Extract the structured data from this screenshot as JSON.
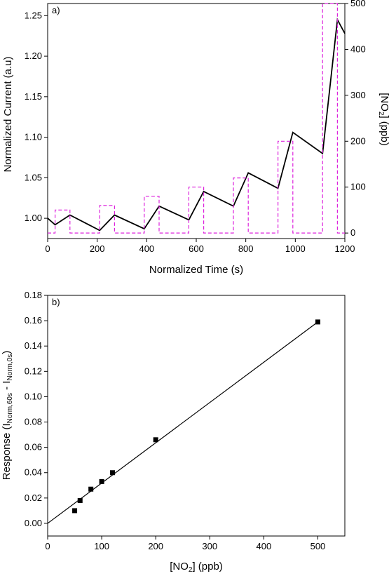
{
  "chart_data": [
    {
      "panel_label": "a)",
      "type": "line",
      "xlabel": "Normalized Time (s)",
      "ylabel": "Normalized Current (a.u)",
      "y2label_main": "[NO",
      "y2label_sub": "2",
      "y2label_tail": "] (ppb)",
      "xlim": [
        0,
        1200
      ],
      "ylim": [
        0.975,
        1.265
      ],
      "y2lim": [
        -12,
        500
      ],
      "xticks": [
        0,
        200,
        400,
        600,
        800,
        1000,
        1200
      ],
      "yticks": [
        1.0,
        1.05,
        1.1,
        1.15,
        1.2,
        1.25
      ],
      "y2ticks": [
        0,
        100,
        200,
        300,
        400,
        500
      ],
      "grid": false,
      "series": [
        {
          "axis": "left",
          "color": "#000000",
          "style": "solid",
          "x": [
            0,
            30,
            90,
            210,
            270,
            390,
            450,
            570,
            630,
            750,
            810,
            930,
            990,
            1110,
            1170,
            1200
          ],
          "y": [
            1.0,
            0.992,
            1.004,
            0.985,
            1.004,
            0.987,
            1.015,
            0.998,
            1.033,
            1.015,
            1.056,
            1.037,
            1.106,
            1.08,
            1.245,
            1.228
          ]
        },
        {
          "axis": "right",
          "color": "#dd22dd",
          "style": "dashed",
          "x": [
            0,
            30,
            30,
            90,
            90,
            210,
            210,
            270,
            270,
            390,
            390,
            450,
            450,
            570,
            570,
            630,
            630,
            750,
            750,
            810,
            810,
            930,
            930,
            990,
            990,
            1110,
            1110,
            1170,
            1170,
            1200
          ],
          "y": [
            0,
            0,
            50,
            50,
            0,
            0,
            60,
            60,
            0,
            0,
            80,
            80,
            0,
            0,
            100,
            100,
            0,
            0,
            120,
            120,
            0,
            0,
            200,
            200,
            0,
            0,
            500,
            500,
            0,
            0
          ]
        }
      ]
    },
    {
      "panel_label": "b)",
      "type": "scatter",
      "xlabel_main": "[NO",
      "xlabel_sub": "2",
      "xlabel_tail": "] (ppb)",
      "ylabel_main": "Response (I",
      "ylabel_sub1": "Norm,60s",
      "ylabel_mid": " - I",
      "ylabel_sub2": "Norm,0s",
      "ylabel_tail": ")",
      "xlim": [
        0,
        550
      ],
      "ylim": [
        -0.01,
        0.18
      ],
      "xticks": [
        0,
        100,
        200,
        300,
        400,
        500
      ],
      "yticks": [
        0.0,
        0.02,
        0.04,
        0.06,
        0.08,
        0.1,
        0.12,
        0.14,
        0.16,
        0.18
      ],
      "grid": false,
      "points": {
        "x": [
          50,
          60,
          80,
          100,
          120,
          200,
          500
        ],
        "y": [
          0.01,
          0.018,
          0.027,
          0.033,
          0.04,
          0.066,
          0.159
        ]
      },
      "fit_line": {
        "x": [
          0,
          500
        ],
        "y": [
          0.0,
          0.159
        ]
      }
    }
  ]
}
